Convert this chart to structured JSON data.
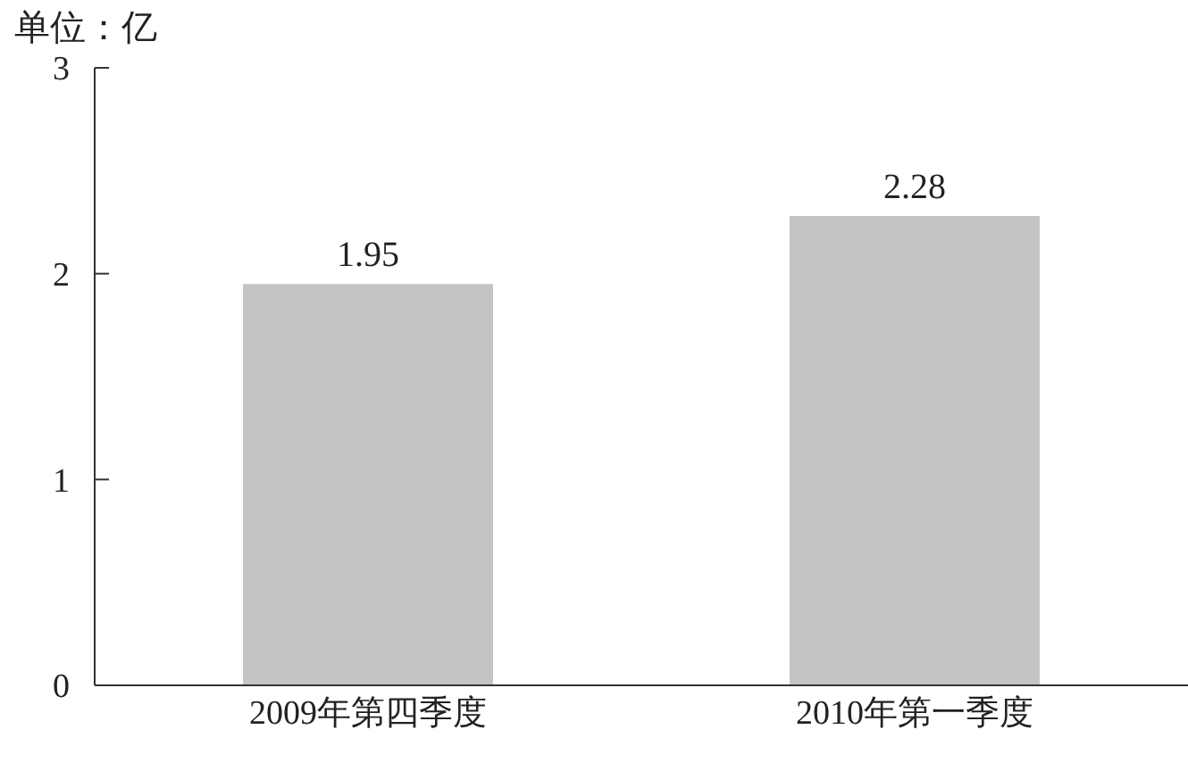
{
  "chart_data": {
    "type": "bar",
    "ylabel": "单位：亿",
    "categories": [
      "2009年第四季度",
      "2010年第一季度"
    ],
    "values": [
      1.95,
      2.28
    ],
    "color": "#c4c4c4",
    "ylim": [
      0,
      3
    ],
    "yticks": [
      0,
      1,
      2,
      3
    ],
    "grid": false,
    "data_labels": true
  }
}
